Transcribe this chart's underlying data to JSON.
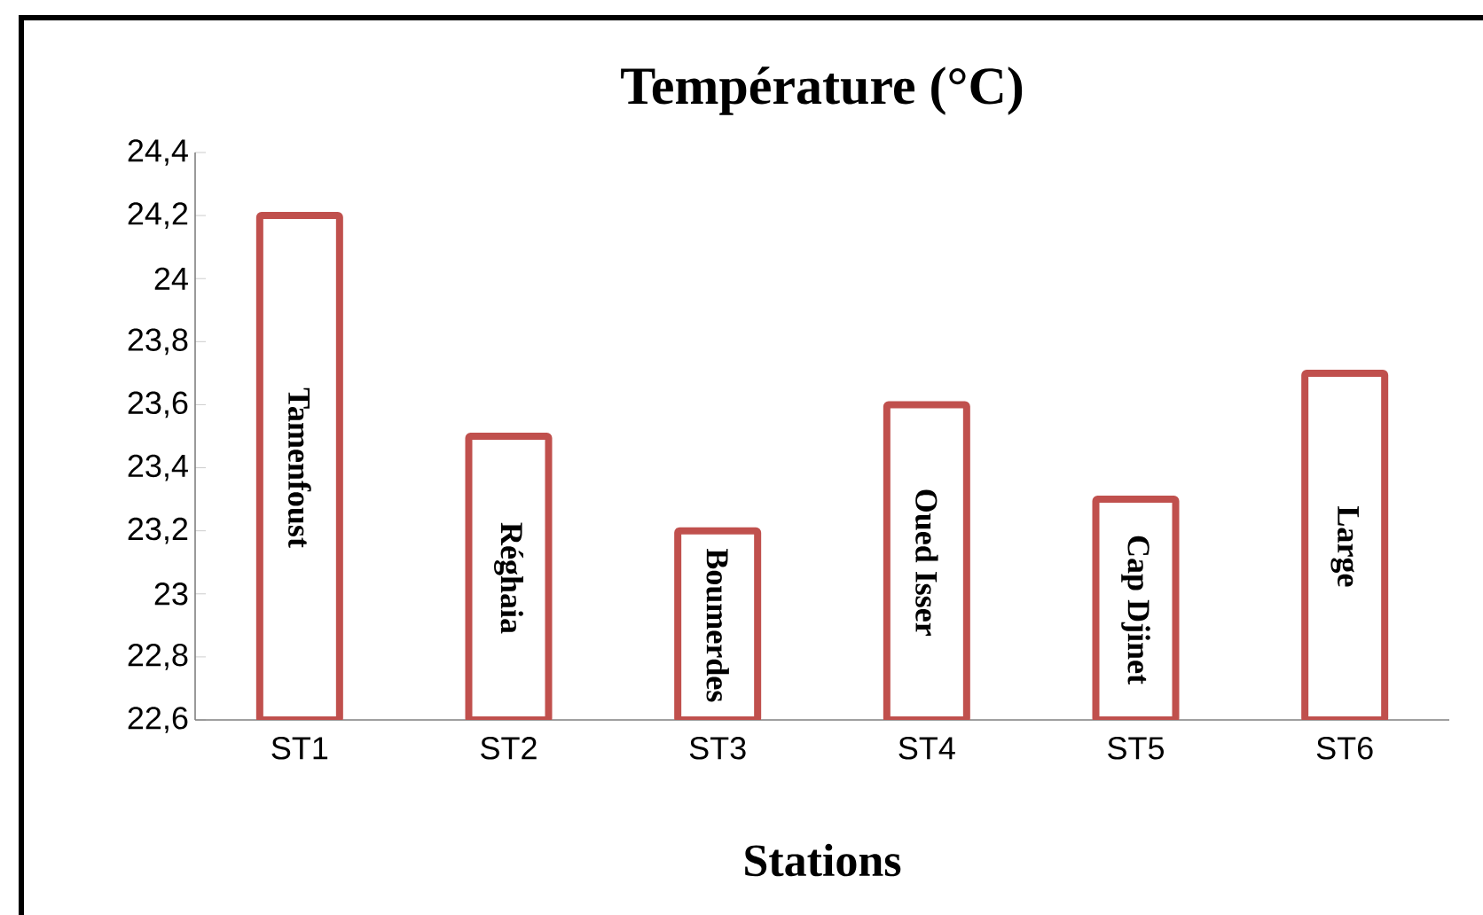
{
  "chart_data": {
    "type": "bar",
    "title": "Température (°C)",
    "xlabel": "Stations",
    "categories": [
      "ST1",
      "ST2",
      "ST3",
      "ST4",
      "ST5",
      "ST6"
    ],
    "values": [
      24.2,
      23.5,
      23.2,
      23.6,
      23.3,
      23.7
    ],
    "color": "#c0504d",
    "ylim": [
      22.6,
      24.4
    ],
    "yticks": [
      {
        "value": 22.6,
        "label": "22,6"
      },
      {
        "value": 22.8,
        "label": "22,8"
      },
      {
        "value": 23,
        "label": "23"
      },
      {
        "value": 23.2,
        "label": "23,2"
      },
      {
        "value": 23.4,
        "label": "23,4"
      },
      {
        "value": 23.6,
        "label": "23,6"
      },
      {
        "value": 23.8,
        "label": "23,8"
      },
      {
        "value": 24,
        "label": "24"
      },
      {
        "value": 24.2,
        "label": "24,2"
      },
      {
        "value": 24.4,
        "label": "24,4"
      }
    ],
    "annotations": [
      "Tamenfoust",
      "Réghaia",
      "Boumerdes",
      "Oued Isser",
      "Cap Djinet",
      "Large"
    ],
    "grid": false
  }
}
